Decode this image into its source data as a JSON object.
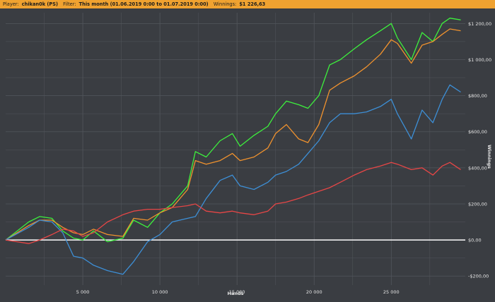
{
  "header": {
    "player_label": "Player:",
    "player_value": "chikan0k (PS)",
    "filter_label": "Filter:",
    "filter_value": "This month (01.06.2019 0:00 to 01.07.2019 0:00)",
    "winnings_label": "Winnings:",
    "winnings_value": "$1 226,63"
  },
  "colors": {
    "background": "#3a3d42",
    "grid": "#52565c",
    "zero_line": "#ffffff",
    "header_bg": "#f0a230"
  },
  "chart_data": {
    "type": "line",
    "xlabel": "Hands",
    "ylabel": "Winnings",
    "xlim": [
      0,
      29800
    ],
    "ylim": [
      -250,
      1260
    ],
    "x_ticks": [
      5000,
      10000,
      15000,
      20000,
      25000
    ],
    "x_tick_labels": [
      "5 000",
      "10 000",
      "15 000",
      "20 000",
      "25 000"
    ],
    "y_ticks": [
      -200,
      0,
      200,
      400,
      600,
      800,
      1000,
      1200
    ],
    "y_tick_labels": [
      "-$200,00",
      "$0,00",
      "$200,00",
      "$400,00",
      "$600,00",
      "$800,00",
      "$1 000,00",
      "$1 200,00"
    ],
    "grid": true,
    "legend": "none",
    "series": [
      {
        "color": "#3df03d",
        "x": [
          0,
          1500,
          2200,
          3000,
          3700,
          4400,
          5000,
          5700,
          6600,
          7600,
          8300,
          9200,
          10000,
          10800,
          11800,
          12300,
          13000,
          13900,
          14700,
          15200,
          16100,
          17000,
          17500,
          18200,
          19000,
          19600,
          20300,
          21000,
          21700,
          22600,
          23400,
          24300,
          25000,
          25400,
          26300,
          27000,
          27700,
          28300,
          28800,
          29500
        ],
        "y": [
          0,
          100,
          130,
          120,
          50,
          10,
          0,
          50,
          -10,
          10,
          110,
          70,
          150,
          200,
          300,
          490,
          460,
          550,
          590,
          520,
          580,
          630,
          700,
          770,
          750,
          730,
          800,
          970,
          1000,
          1060,
          1110,
          1160,
          1200,
          1120,
          1000,
          1150,
          1100,
          1200,
          1230,
          1220
        ]
      },
      {
        "color": "#f0922e",
        "x": [
          0,
          1500,
          2200,
          3000,
          3700,
          4400,
          5000,
          5700,
          6600,
          7600,
          8300,
          9200,
          10000,
          10800,
          11800,
          12300,
          13000,
          13900,
          14700,
          15200,
          16100,
          17000,
          17500,
          18200,
          19000,
          19600,
          20300,
          21000,
          21700,
          22600,
          23400,
          24300,
          25000,
          25400,
          26300,
          27000,
          27700,
          28300,
          28800,
          29500
        ],
        "y": [
          0,
          80,
          110,
          110,
          70,
          40,
          30,
          60,
          30,
          20,
          120,
          110,
          150,
          180,
          280,
          440,
          420,
          440,
          480,
          440,
          460,
          510,
          590,
          640,
          560,
          540,
          640,
          830,
          870,
          910,
          960,
          1030,
          1110,
          1090,
          980,
          1080,
          1100,
          1140,
          1170,
          1160
        ]
      },
      {
        "color": "#3d8fd6",
        "x": [
          0,
          1500,
          2200,
          3000,
          3700,
          4400,
          5000,
          5700,
          6600,
          7600,
          8300,
          9200,
          10000,
          10800,
          11800,
          12300,
          13000,
          13900,
          14700,
          15200,
          16100,
          17000,
          17500,
          18200,
          19000,
          19600,
          20300,
          21000,
          21700,
          22600,
          23400,
          24300,
          25000,
          25400,
          26300,
          27000,
          27700,
          28300,
          28800,
          29500
        ],
        "y": [
          0,
          70,
          110,
          100,
          40,
          -90,
          -100,
          -140,
          -170,
          -190,
          -120,
          -10,
          30,
          100,
          120,
          130,
          230,
          330,
          360,
          300,
          280,
          320,
          360,
          380,
          420,
          480,
          550,
          650,
          700,
          700,
          710,
          740,
          780,
          700,
          560,
          720,
          650,
          780,
          860,
          820
        ]
      },
      {
        "color": "#e64646",
        "x": [
          0,
          1500,
          2200,
          3000,
          3700,
          4400,
          5000,
          5700,
          6600,
          7600,
          8300,
          9200,
          10000,
          10800,
          11800,
          12300,
          13000,
          13900,
          14700,
          15200,
          16100,
          17000,
          17500,
          18200,
          19000,
          19600,
          20300,
          21000,
          21700,
          22600,
          23400,
          24300,
          25000,
          25400,
          26300,
          27000,
          27700,
          28300,
          28800,
          29500
        ],
        "y": [
          0,
          -20,
          0,
          30,
          60,
          50,
          20,
          40,
          100,
          140,
          160,
          170,
          170,
          180,
          190,
          200,
          160,
          150,
          160,
          150,
          140,
          160,
          200,
          210,
          230,
          250,
          270,
          290,
          320,
          360,
          390,
          410,
          430,
          420,
          390,
          400,
          360,
          410,
          430,
          390
        ]
      }
    ]
  }
}
